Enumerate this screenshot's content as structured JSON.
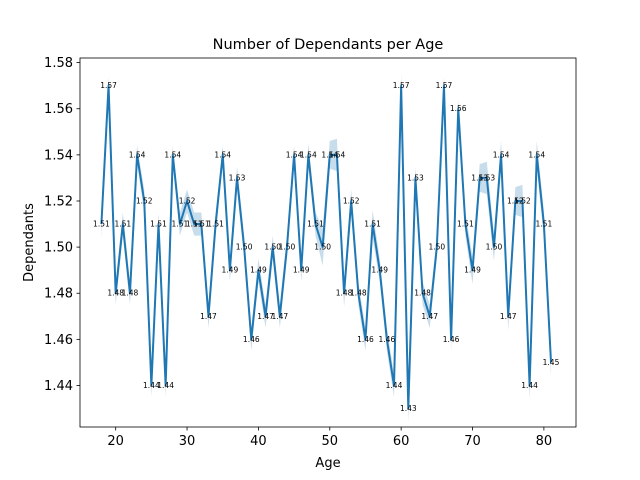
{
  "chart_data": {
    "type": "line",
    "title": "Number of Dependants per Age",
    "xlabel": "Age",
    "ylabel": "Dependants",
    "xlim": [
      15,
      84.5
    ],
    "ylim": [
      1.422,
      1.582
    ],
    "xticks": [
      20,
      30,
      40,
      50,
      60,
      70,
      80
    ],
    "yticks": [
      1.44,
      1.46,
      1.48,
      1.5,
      1.52,
      1.54,
      1.56,
      1.58
    ],
    "grid": false,
    "legend": "none",
    "line_color": "#1f77b4",
    "band_color": "#1f77b4",
    "series": [
      {
        "x": [
          18,
          19,
          20,
          21,
          22,
          23,
          24,
          25,
          26,
          27,
          28,
          29,
          30,
          31,
          32,
          33,
          34,
          35,
          36,
          37,
          38,
          39,
          40,
          41,
          42,
          43,
          44,
          45,
          46,
          47,
          48,
          49,
          50,
          51,
          52,
          53,
          54,
          55,
          56,
          57,
          58,
          59,
          60,
          61,
          62,
          63,
          64,
          65,
          66,
          67,
          68,
          69,
          70,
          71,
          72,
          73,
          74,
          75,
          76,
          77,
          78,
          79,
          80,
          81
        ],
        "y": [
          1.51,
          1.57,
          1.48,
          1.51,
          1.48,
          1.54,
          1.52,
          1.44,
          1.51,
          1.44,
          1.54,
          1.51,
          1.52,
          1.51,
          1.51,
          1.47,
          1.51,
          1.54,
          1.49,
          1.53,
          1.5,
          1.46,
          1.49,
          1.47,
          1.5,
          1.47,
          1.5,
          1.54,
          1.49,
          1.54,
          1.51,
          1.5,
          1.54,
          1.54,
          1.48,
          1.52,
          1.48,
          1.46,
          1.51,
          1.49,
          1.46,
          1.44,
          1.57,
          1.43,
          1.53,
          1.48,
          1.47,
          1.5,
          1.57,
          1.46,
          1.56,
          1.51,
          1.49,
          1.53,
          1.53,
          1.5,
          1.54,
          1.47,
          1.52,
          1.52,
          1.44,
          1.54,
          1.51,
          1.45
        ],
        "ci": [
          0.006,
          0.004,
          0.005,
          0.005,
          0.005,
          0.004,
          0.005,
          0.005,
          0.005,
          0.005,
          0.004,
          0.005,
          0.005,
          0.005,
          0.005,
          0.005,
          0.005,
          0.004,
          0.005,
          0.005,
          0.005,
          0.005,
          0.005,
          0.005,
          0.005,
          0.005,
          0.005,
          0.004,
          0.005,
          0.005,
          0.005,
          0.008,
          0.006,
          0.007,
          0.006,
          0.005,
          0.005,
          0.005,
          0.006,
          0.005,
          0.005,
          0.005,
          0.005,
          0.006,
          0.005,
          0.005,
          0.005,
          0.005,
          0.004,
          0.005,
          0.004,
          0.005,
          0.006,
          0.006,
          0.007,
          0.006,
          0.006,
          0.006,
          0.006,
          0.007,
          0.006,
          0.006,
          0.006,
          0.006
        ],
        "labels": [
          "1.51",
          "1.57",
          "1.48",
          "1.51",
          "1.48",
          "1.54",
          "1.52",
          "1.44",
          "1.51",
          "1.44",
          "1.54",
          "1.51",
          "1.52",
          "1.51",
          "1.51",
          "1.47",
          "1.51",
          "1.54",
          "1.49",
          "1.53",
          "1.50",
          "1.46",
          "1.49",
          "1.47",
          "1.50",
          "1.47",
          "1.50",
          "1.54",
          "1.49",
          "1.54",
          "1.51",
          "1.50",
          "1.54",
          "1.54",
          "1.48",
          "1.52",
          "1.48",
          "1.46",
          "1.51",
          "1.49",
          "1.46",
          "1.44",
          "1.57",
          "1.43",
          "1.53",
          "1.48",
          "1.47",
          "1.50",
          "1.57",
          "1.46",
          "1.56",
          "1.51",
          "1.49",
          "1.53",
          "1.53",
          "1.50",
          "1.54",
          "1.47",
          "1.52",
          "1.52",
          "1.44",
          "1.54",
          "1.51",
          "1.45"
        ]
      }
    ]
  }
}
